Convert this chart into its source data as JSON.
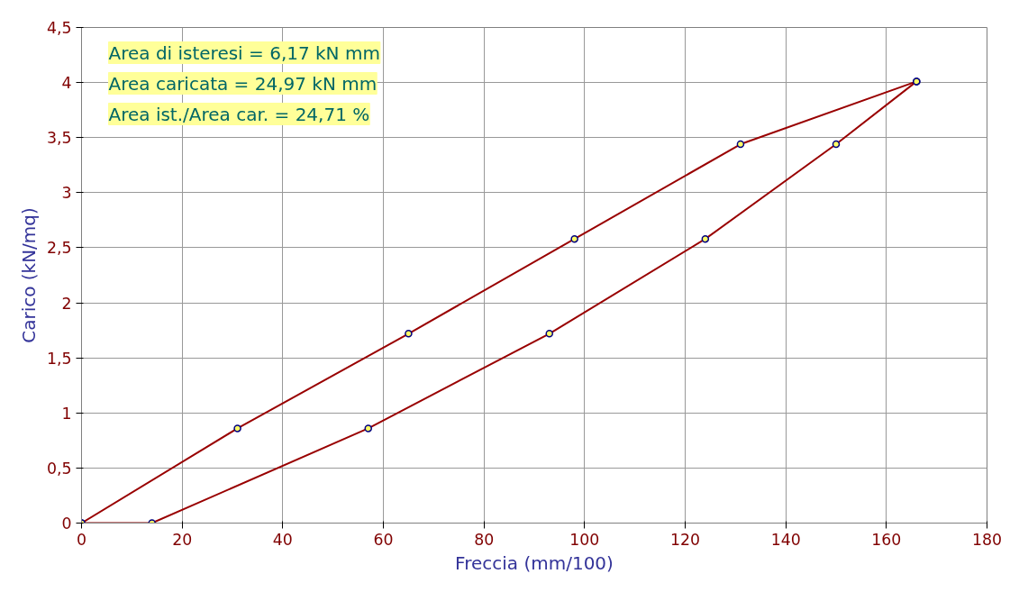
{
  "chart_data": {
    "type": "line",
    "xlabel": "Freccia (mm/100)",
    "ylabel": "Carico (kN/mq)",
    "annotations": [
      "Area di isteresi = 6,17 kN mm",
      "Area caricata = 24,97 kN mm",
      "Area ist./Area car. = 24,71 %"
    ],
    "series": [
      {
        "color": "#990000",
        "x": [
          0,
          31,
          65,
          98,
          131,
          166
        ],
        "values": [
          0,
          0.86,
          1.72,
          2.58,
          3.44,
          4.01
        ]
      },
      {
        "color": "#990000",
        "x": [
          0,
          14,
          57,
          93,
          124,
          150,
          166
        ],
        "values": [
          0,
          0,
          0.86,
          1.72,
          2.58,
          3.44,
          4.01
        ]
      }
    ],
    "xlim": [
      0,
      180
    ],
    "xticks": [
      0,
      20,
      40,
      60,
      80,
      100,
      120,
      140,
      160,
      180
    ],
    "ylim": [
      0,
      4.5
    ],
    "yticks": [
      0,
      {
        "value": 0.5,
        "label": "0,5"
      },
      1,
      {
        "value": 1.5,
        "label": "1,5"
      },
      2,
      {
        "value": 2.5,
        "label": "2,5"
      },
      3,
      {
        "value": 3.5,
        "label": "3,5"
      },
      4,
      {
        "value": 4.5,
        "label": "4,5"
      }
    ],
    "grid": true,
    "marker": "circle",
    "line_style": "solid"
  }
}
